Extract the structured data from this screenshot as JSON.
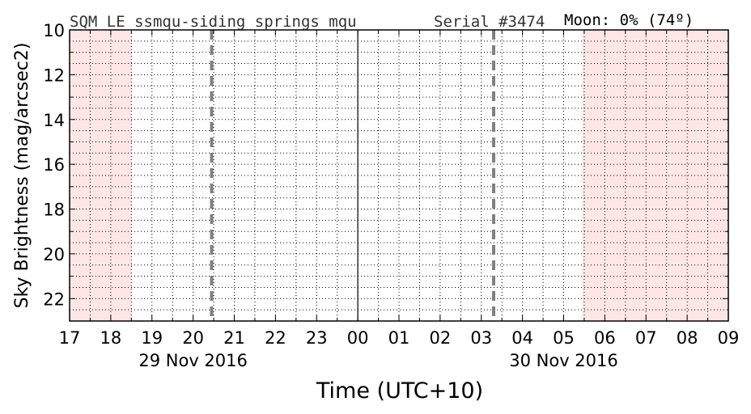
{
  "chart_data": {
    "type": "line",
    "title_left": "SQM_LE_ssmqu-siding_springs_mqu",
    "title_serial": "Serial #3474",
    "title_moon": "Moon: 0% (74º)",
    "xlabel": "Time (UTC+10)",
    "ylabel": "Sky Brightness (mag/arcsec2)",
    "x_ticks": [
      "17",
      "18",
      "19",
      "20",
      "21",
      "22",
      "23",
      "00",
      "01",
      "02",
      "03",
      "04",
      "05",
      "06",
      "07",
      "08",
      "09"
    ],
    "x_range_hours": [
      17,
      33
    ],
    "date_labels": [
      {
        "text": "29 Nov 2016",
        "hour": 20
      },
      {
        "text": "30 Nov 2016",
        "hour": 29
      }
    ],
    "y_ticks": [
      "10",
      "12",
      "14",
      "16",
      "18",
      "20",
      "22"
    ],
    "ylim": [
      10,
      23
    ],
    "y_inverted": true,
    "midnight_line_hour": 24,
    "dashed_lines_hours": [
      20.45,
      27.3
    ],
    "daylight_shading_hours": [
      [
        17,
        18.5
      ],
      [
        29.45,
        33
      ]
    ],
    "shade_color": "#ffe6e6",
    "dashed_line_color": "#808080",
    "grid": true,
    "series": []
  }
}
